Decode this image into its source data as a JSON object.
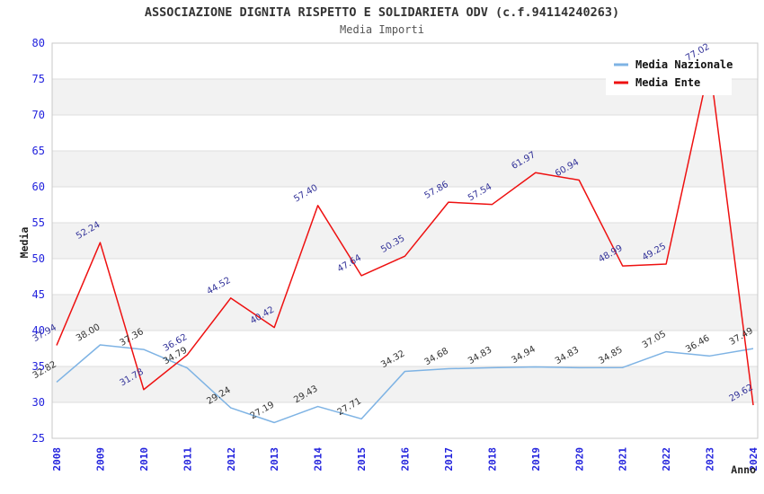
{
  "chart_data": {
    "type": "line",
    "title": "ASSOCIAZIONE DIGNITA RISPETTO E SOLIDARIETA ODV (c.f.94114240263)",
    "subtitle": "Media Importi",
    "xlabel": "Anno",
    "ylabel": "Media",
    "x": [
      "2008",
      "2009",
      "2010",
      "2011",
      "2012",
      "2013",
      "2014",
      "2015",
      "2016",
      "2017",
      "2018",
      "2019",
      "2020",
      "2021",
      "2022",
      "2023",
      "2024"
    ],
    "series": [
      {
        "name": "Media Nazionale",
        "color": "#7eb3e4",
        "label_color": "#333333",
        "values": [
          32.82,
          38.0,
          37.36,
          34.79,
          29.24,
          27.19,
          29.43,
          27.71,
          34.32,
          34.68,
          34.83,
          34.94,
          34.83,
          34.85,
          37.05,
          36.46,
          37.49
        ]
      },
      {
        "name": "Media Ente",
        "color": "#ee1111",
        "label_color": "#333399",
        "values": [
          37.94,
          52.24,
          31.78,
          36.62,
          44.52,
          40.42,
          57.4,
          47.64,
          50.35,
          57.86,
          57.54,
          61.97,
          60.94,
          48.99,
          49.25,
          77.02,
          29.62
        ]
      }
    ],
    "ylim": [
      25,
      80
    ],
    "ytick_step": 5,
    "yticks": [
      "25",
      "30",
      "35",
      "40",
      "45",
      "50",
      "55",
      "60",
      "65",
      "70",
      "75",
      "80"
    ],
    "grid": true,
    "legend_position": "top-right",
    "colors": {
      "band_fill": "#f2f2f2",
      "gridline": "#dddddd",
      "plot_border": "#c8c8c8",
      "tick_label": "#2222dd",
      "axis_title": "#222222",
      "legend_text": "#111111",
      "legend_bg": "#ffffff"
    }
  }
}
